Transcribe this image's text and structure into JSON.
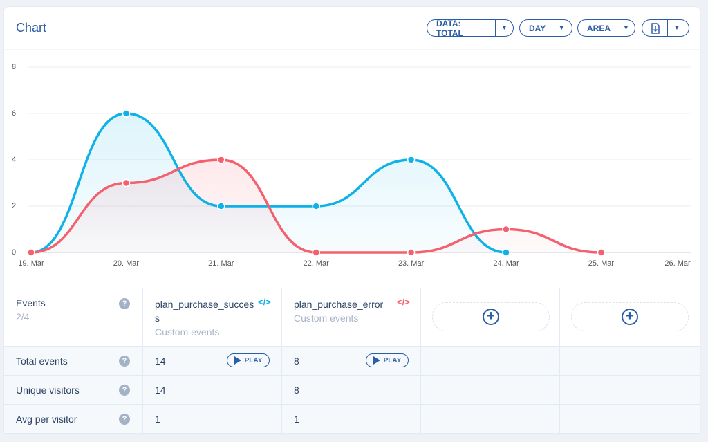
{
  "header": {
    "title": "Chart",
    "controls": [
      "DATA: TOTAL",
      "DAY",
      "AREA"
    ]
  },
  "chart_data": {
    "type": "area",
    "categories": [
      "19. Mar",
      "20. Mar",
      "21. Mar",
      "22. Mar",
      "23. Mar",
      "24. Mar",
      "25. Mar",
      "26. Mar"
    ],
    "series": [
      {
        "name": "plan_purchase_success",
        "color": "#0fb2e6",
        "values": [
          0,
          6,
          2,
          2,
          4,
          0,
          null,
          null
        ]
      },
      {
        "name": "plan_purchase_error",
        "color": "#f3606e",
        "values": [
          0,
          3,
          4,
          0,
          0,
          1,
          0,
          null
        ]
      }
    ],
    "ylim": [
      0,
      8
    ],
    "yticks": [
      0,
      2,
      4,
      6,
      8
    ],
    "grid": true
  },
  "table": {
    "events_label": "Events",
    "events_count": "2/4",
    "kind": "Custom events",
    "play": "PLAY",
    "rows": [
      {
        "label": "Total events",
        "values": [
          14,
          8
        ]
      },
      {
        "label": "Unique visitors",
        "values": [
          14,
          8
        ]
      },
      {
        "label": "Avg per visitor",
        "values": [
          1,
          1
        ]
      }
    ]
  }
}
